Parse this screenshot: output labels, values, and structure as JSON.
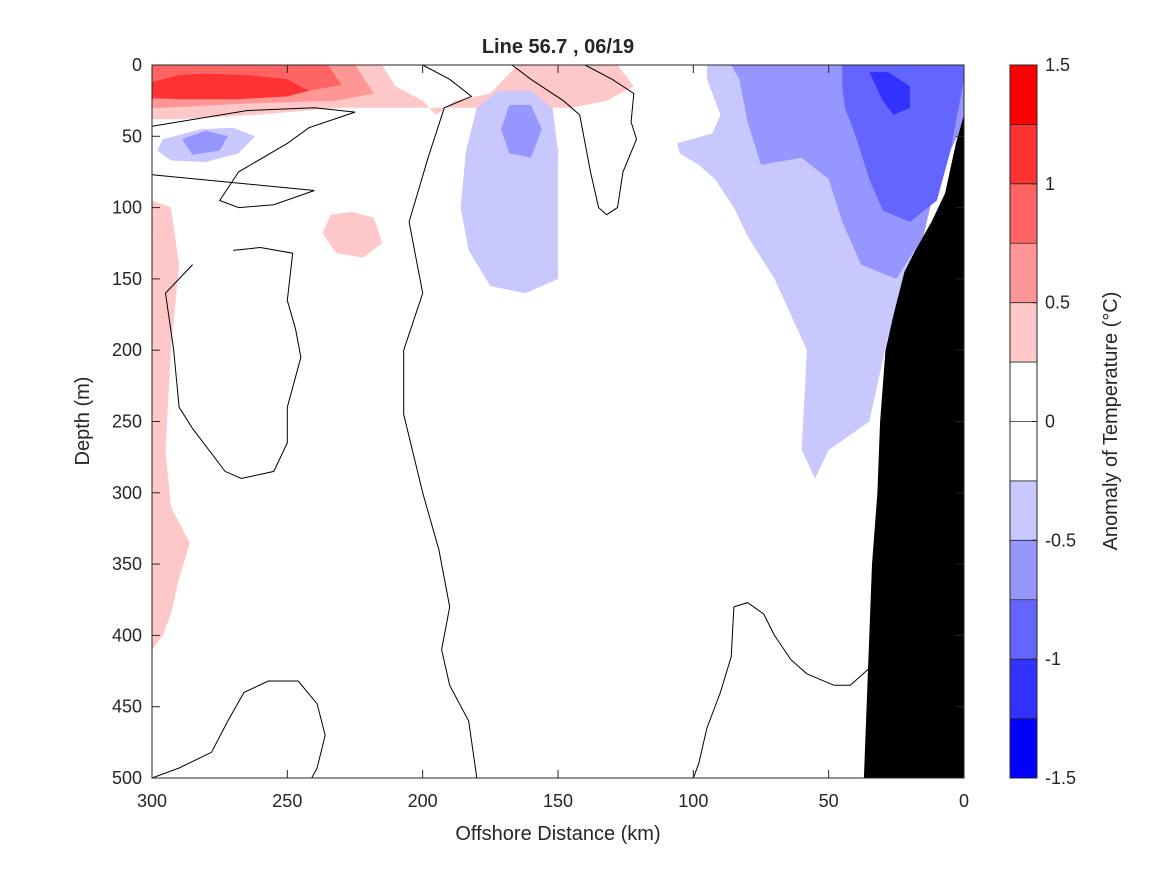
{
  "chart_data": {
    "type": "heatmap",
    "subtype": "filled-contour section",
    "title": "Line 56.7 , 06/19",
    "xlabel": "Offshore Distance (km)",
    "ylabel": "Depth (m)",
    "xlim": [
      300,
      0
    ],
    "ylim": [
      500,
      0
    ],
    "x_reversed": true,
    "y_reversed": true,
    "xticks": [
      300,
      250,
      200,
      150,
      100,
      50,
      0
    ],
    "yticks": [
      0,
      50,
      100,
      150,
      200,
      250,
      300,
      350,
      400,
      450,
      500
    ],
    "colorbar": {
      "label": "Anomaly of Temperature (°C)",
      "range": [
        -1.5,
        1.5
      ],
      "ticks": [
        1.5,
        1,
        0.5,
        0,
        -0.5,
        -1,
        -1.5
      ],
      "levels": [
        1.25,
        1.0,
        0.75,
        0.5,
        0.25,
        0.0,
        -0.25,
        -0.5,
        -0.75,
        -1.0,
        -1.25,
        -1.5
      ],
      "colors": [
        "#ff0000",
        "#ff3232",
        "#ff6464",
        "#ff9696",
        "#ffc8c8",
        "#ffffff",
        "#ffffff",
        "#c8c8ff",
        "#9696ff",
        "#6464ff",
        "#3232ff",
        "#0000ff"
      ]
    },
    "fill_regions": [
      {
        "name": "warm-0.25",
        "color": "#ffc8c8",
        "points": [
          [
            300,
            0
          ],
          [
            215,
            0
          ],
          [
            210,
            15
          ],
          [
            200,
            25
          ],
          [
            195,
            35
          ],
          [
            188,
            25
          ],
          [
            175,
            20
          ],
          [
            165,
            0
          ],
          [
            150,
            0
          ],
          [
            128,
            0
          ],
          [
            122,
            15
          ],
          [
            132,
            25
          ],
          [
            145,
            30
          ],
          [
            158,
            30
          ],
          [
            175,
            30
          ],
          [
            200,
            30
          ],
          [
            230,
            30
          ],
          [
            262,
            35
          ],
          [
            290,
            38
          ],
          [
            300,
            38
          ]
        ]
      },
      {
        "name": "warm-0.25",
        "color": "#ffc8c8",
        "points": [
          [
            300,
            95
          ],
          [
            293,
            100
          ],
          [
            290,
            140
          ],
          [
            293,
            200
          ],
          [
            295,
            270
          ],
          [
            293,
            310
          ],
          [
            286,
            335
          ],
          [
            290,
            360
          ],
          [
            293,
            385
          ],
          [
            296,
            400
          ],
          [
            300,
            410
          ]
        ]
      },
      {
        "name": "warm-0.25",
        "color": "#ffc8c8",
        "points": [
          [
            226,
            103
          ],
          [
            218,
            107
          ],
          [
            215,
            125
          ],
          [
            222,
            135
          ],
          [
            232,
            132
          ],
          [
            237,
            118
          ],
          [
            234,
            105
          ]
        ]
      },
      {
        "name": "warm-0.5",
        "color": "#ff9696",
        "points": [
          [
            300,
            0
          ],
          [
            225,
            0
          ],
          [
            218,
            20
          ],
          [
            232,
            25
          ],
          [
            265,
            27
          ],
          [
            295,
            30
          ],
          [
            300,
            30
          ]
        ]
      },
      {
        "name": "warm-0.75",
        "color": "#ff6464",
        "points": [
          [
            300,
            0
          ],
          [
            235,
            0
          ],
          [
            230,
            14
          ],
          [
            248,
            20
          ],
          [
            275,
            22
          ],
          [
            300,
            24
          ]
        ]
      },
      {
        "name": "warm-1.0",
        "color": "#ff3232",
        "points": [
          [
            300,
            12
          ],
          [
            290,
            7
          ],
          [
            280,
            6
          ],
          [
            265,
            7
          ],
          [
            250,
            10
          ],
          [
            242,
            18
          ],
          [
            250,
            22
          ],
          [
            268,
            24
          ],
          [
            290,
            24
          ],
          [
            300,
            23
          ]
        ]
      },
      {
        "name": "cool-0.25",
        "color": "#c8c8ff",
        "points": [
          [
            296,
            52
          ],
          [
            282,
            45
          ],
          [
            270,
            44
          ],
          [
            262,
            50
          ],
          [
            268,
            62
          ],
          [
            280,
            68
          ],
          [
            293,
            67
          ],
          [
            298,
            60
          ]
        ]
      },
      {
        "name": "cool-0.25",
        "color": "#c8c8ff",
        "points": [
          [
            160,
            18
          ],
          [
            172,
            18
          ],
          [
            180,
            30
          ],
          [
            184,
            60
          ],
          [
            186,
            100
          ],
          [
            183,
            130
          ],
          [
            175,
            155
          ],
          [
            162,
            160
          ],
          [
            150,
            150
          ],
          [
            150,
            110
          ],
          [
            150,
            60
          ],
          [
            152,
            30
          ]
        ]
      },
      {
        "name": "cool-0.25",
        "color": "#c8c8ff",
        "points": [
          [
            95,
            0
          ],
          [
            0,
            0
          ],
          [
            0,
            40
          ],
          [
            10,
            80
          ],
          [
            20,
            150
          ],
          [
            28,
            190
          ],
          [
            35,
            250
          ],
          [
            50,
            270
          ],
          [
            55,
            290
          ],
          [
            60,
            270
          ],
          [
            58,
            200
          ],
          [
            70,
            150
          ],
          [
            80,
            120
          ],
          [
            85,
            100
          ],
          [
            92,
            80
          ],
          [
            98,
            70
          ],
          [
            105,
            62
          ],
          [
            106,
            55
          ],
          [
            93,
            48
          ],
          [
            90,
            35
          ],
          [
            95,
            10
          ]
        ]
      },
      {
        "name": "cool-0.5",
        "color": "#9696ff",
        "points": [
          [
            289,
            52
          ],
          [
            280,
            46
          ],
          [
            272,
            50
          ],
          [
            275,
            60
          ],
          [
            285,
            63
          ]
        ]
      },
      {
        "name": "cool-0.5",
        "color": "#9696ff",
        "points": [
          [
            160,
            28
          ],
          [
            168,
            28
          ],
          [
            171,
            45
          ],
          [
            168,
            62
          ],
          [
            160,
            65
          ],
          [
            156,
            45
          ]
        ]
      },
      {
        "name": "cool-0.5",
        "color": "#9696ff",
        "points": [
          [
            86,
            0
          ],
          [
            0,
            0
          ],
          [
            0,
            40
          ],
          [
            10,
            80
          ],
          [
            15,
            120
          ],
          [
            25,
            150
          ],
          [
            38,
            140
          ],
          [
            45,
            110
          ],
          [
            50,
            80
          ],
          [
            60,
            65
          ],
          [
            75,
            70
          ],
          [
            80,
            40
          ],
          [
            83,
            10
          ]
        ]
      },
      {
        "name": "cool-0.75",
        "color": "#6464ff",
        "points": [
          [
            45,
            0
          ],
          [
            0,
            0
          ],
          [
            0,
            10
          ],
          [
            5,
            60
          ],
          [
            10,
            95
          ],
          [
            20,
            110
          ],
          [
            30,
            102
          ],
          [
            35,
            80
          ],
          [
            40,
            50
          ],
          [
            44,
            30
          ],
          [
            45,
            15
          ]
        ]
      },
      {
        "name": "cool-1.0",
        "color": "#3232ff",
        "points": [
          [
            35,
            5
          ],
          [
            28,
            5
          ],
          [
            20,
            15
          ],
          [
            20,
            30
          ],
          [
            26,
            35
          ],
          [
            30,
            25
          ]
        ]
      }
    ],
    "zero_contours": [
      [
        [
          300,
          43
        ],
        [
          265,
          32
        ],
        [
          240,
          30
        ],
        [
          225,
          33
        ],
        [
          242,
          44
        ],
        [
          250,
          55
        ],
        [
          268,
          75
        ],
        [
          275,
          95
        ],
        [
          268,
          100
        ],
        [
          255,
          98
        ],
        [
          240,
          88
        ],
        [
          300,
          77
        ]
      ],
      [
        [
          200,
          0
        ],
        [
          190,
          10
        ],
        [
          182,
          22
        ],
        [
          192,
          30
        ],
        [
          198,
          65
        ],
        [
          205,
          110
        ],
        [
          200,
          160
        ],
        [
          207,
          200
        ],
        [
          207,
          245
        ],
        [
          200,
          300
        ],
        [
          194,
          340
        ],
        [
          190,
          380
        ],
        [
          193,
          410
        ],
        [
          190,
          435
        ],
        [
          183,
          460
        ],
        [
          180,
          500
        ]
      ],
      [
        [
          180,
          0
        ],
        [
          167,
          0
        ],
        [
          160,
          10
        ],
        [
          148,
          25
        ],
        [
          142,
          35
        ],
        [
          138,
          75
        ],
        [
          135,
          100
        ],
        [
          132,
          105
        ],
        [
          128,
          100
        ],
        [
          126,
          75
        ],
        [
          121,
          52
        ],
        [
          123,
          40
        ],
        [
          122,
          20
        ],
        [
          130,
          10
        ],
        [
          140,
          0
        ]
      ],
      [
        [
          270,
          130
        ],
        [
          260,
          128
        ],
        [
          248,
          132
        ],
        [
          250,
          165
        ],
        [
          247,
          185
        ],
        [
          245,
          205
        ],
        [
          250,
          240
        ],
        [
          250,
          265
        ],
        [
          255,
          285
        ],
        [
          267,
          290
        ],
        [
          273,
          285
        ],
        [
          285,
          255
        ],
        [
          290,
          240
        ],
        [
          292,
          200
        ],
        [
          295,
          160
        ],
        [
          285,
          140
        ]
      ],
      [
        [
          300,
          500
        ],
        [
          290,
          493
        ],
        [
          278,
          482
        ],
        [
          272,
          460
        ],
        [
          266,
          440
        ],
        [
          257,
          432
        ],
        [
          246,
          432
        ],
        [
          239,
          448
        ],
        [
          236,
          470
        ],
        [
          239,
          493
        ],
        [
          241,
          500
        ]
      ],
      [
        [
          100,
          500
        ],
        [
          98,
          490
        ],
        [
          95,
          465
        ],
        [
          90,
          440
        ],
        [
          86,
          415
        ],
        [
          85,
          380
        ],
        [
          80,
          377
        ],
        [
          74,
          385
        ],
        [
          70,
          400
        ],
        [
          64,
          417
        ],
        [
          58,
          427
        ],
        [
          48,
          435
        ],
        [
          42,
          435
        ],
        [
          32,
          418
        ],
        [
          28,
          400
        ],
        [
          25,
          372
        ]
      ]
    ],
    "land_mask": {
      "color": "#000000",
      "points": [
        [
          0,
          35
        ],
        [
          3,
          55
        ],
        [
          7,
          90
        ],
        [
          12,
          110
        ],
        [
          18,
          130
        ],
        [
          22,
          145
        ],
        [
          26,
          175
        ],
        [
          29,
          200
        ],
        [
          31,
          250
        ],
        [
          32,
          300
        ],
        [
          34,
          350
        ],
        [
          35,
          400
        ],
        [
          36,
          450
        ],
        [
          37,
          500
        ],
        [
          0,
          500
        ]
      ]
    }
  }
}
